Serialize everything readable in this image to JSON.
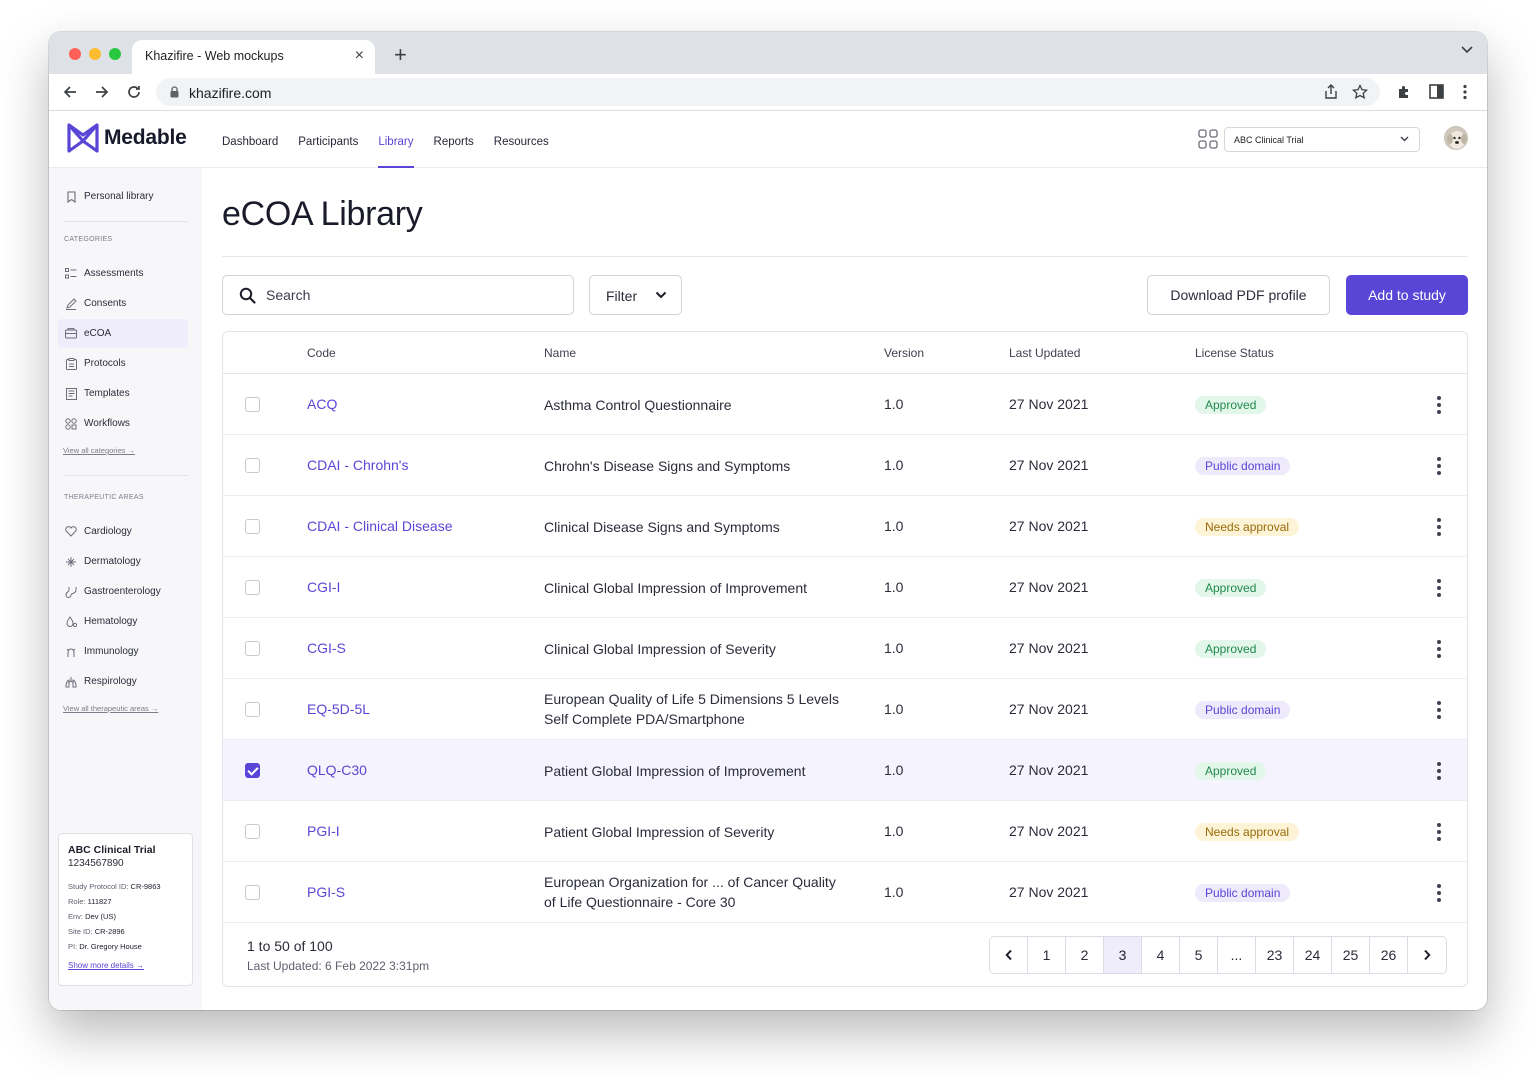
{
  "browser": {
    "tab_title": "Khazifire - Web mockups",
    "url": "khazifire.com"
  },
  "app": {
    "brand": "Medable",
    "nav": [
      {
        "label": "Dashboard",
        "active": false
      },
      {
        "label": "Participants",
        "active": false
      },
      {
        "label": "Library",
        "active": true
      },
      {
        "label": "Reports",
        "active": false
      },
      {
        "label": "Resources",
        "active": false
      }
    ],
    "trial_select": "ABC Clinical Trial",
    "accent_color": "#5a46d6"
  },
  "sidebar": {
    "personal_library": "Personal library",
    "categories_heading": "CATEGORIES",
    "categories": [
      {
        "label": "Assessments",
        "icon": "list-icon",
        "active": false
      },
      {
        "label": "Consents",
        "icon": "pen-icon",
        "active": false
      },
      {
        "label": "eCOA",
        "icon": "device-icon",
        "active": true
      },
      {
        "label": "Protocols",
        "icon": "clipboard-icon",
        "active": false
      },
      {
        "label": "Templates",
        "icon": "template-icon",
        "active": false
      },
      {
        "label": "Workflows",
        "icon": "workflow-icon",
        "active": false
      }
    ],
    "view_all_categories": "View all categories",
    "areas_heading": "THERAPEUTIC AREAS",
    "areas": [
      {
        "label": "Cardiology",
        "icon": "heart-icon"
      },
      {
        "label": "Dermatology",
        "icon": "skin-icon"
      },
      {
        "label": "Gastroenterology",
        "icon": "stomach-icon"
      },
      {
        "label": "Hematology",
        "icon": "blood-icon"
      },
      {
        "label": "Immunology",
        "icon": "immune-icon"
      },
      {
        "label": "Respirology",
        "icon": "lungs-icon"
      }
    ],
    "view_all_areas": "View all therapeutic areas",
    "trial_card": {
      "title": "ABC Clinical Trial",
      "id": "1234567890",
      "rows": [
        {
          "label": "Study Protocol ID:",
          "value": "CR-9863"
        },
        {
          "label": "Role:",
          "value": "111827"
        },
        {
          "label": "Env:",
          "value": "Dev (US)"
        },
        {
          "label": "Site ID:",
          "value": "CR-2896"
        },
        {
          "label": "PI:",
          "value": "Dr. Gregory House"
        }
      ],
      "link": "Show more details"
    }
  },
  "main": {
    "title": "eCOA Library",
    "search_placeholder": "Search",
    "filter_label": "Filter",
    "download_label": "Download PDF profile",
    "add_label": "Add to study",
    "columns": [
      "Code",
      "Name",
      "Version",
      "Last Updated",
      "License Status"
    ],
    "rows": [
      {
        "code": "ACQ",
        "name": "Asthma Control Questionnaire",
        "version": "1.0",
        "updated": "27 Nov 2021",
        "status": "Approved",
        "checked": false
      },
      {
        "code": "CDAI - Chrohn's",
        "name": "Chrohn's Disease Signs and Symptoms",
        "version": "1.0",
        "updated": "27 Nov 2021",
        "status": "Public domain",
        "checked": false
      },
      {
        "code": "CDAI - Clinical Disease",
        "name": "Clinical Disease Signs and Symptoms",
        "version": "1.0",
        "updated": "27 Nov 2021",
        "status": "Needs approval",
        "checked": false
      },
      {
        "code": "CGI-I",
        "name": "Clinical Global Impression of Improvement",
        "version": "1.0",
        "updated": "27 Nov 2021",
        "status": "Approved",
        "checked": false
      },
      {
        "code": "CGI-S",
        "name": "Clinical Global Impression of Severity",
        "version": "1.0",
        "updated": "27 Nov 2021",
        "status": "Approved",
        "checked": false
      },
      {
        "code": "EQ-5D-5L",
        "name": "European Quality of Life 5 Dimensions 5 Levels Self Complete PDA/Smartphone",
        "version": "1.0",
        "updated": "27 Nov 2021",
        "status": "Public domain",
        "checked": false
      },
      {
        "code": "QLQ-C30",
        "name": "Patient Global Impression of Improvement",
        "version": "1.0",
        "updated": "27 Nov 2021",
        "status": "Approved",
        "checked": true
      },
      {
        "code": "PGI-I",
        "name": "Patient Global Impression of Severity",
        "version": "1.0",
        "updated": "27 Nov 2021",
        "status": "Needs approval",
        "checked": false
      },
      {
        "code": "PGI-S",
        "name": "European Organization for ... of Cancer Quality of Life Questionnaire - Core 30",
        "version": "1.0",
        "updated": "27 Nov 2021",
        "status": "Public domain",
        "checked": false
      }
    ],
    "status_colors": {
      "Approved": {
        "bg": "#e3f6ea",
        "fg": "#1f8a4c"
      },
      "Public domain": {
        "bg": "#eeeafb",
        "fg": "#5a46d6"
      },
      "Needs approval": {
        "bg": "#fdf3d6",
        "fg": "#9a6b08"
      }
    },
    "footer": {
      "range": "1 to 50 of 100",
      "last_updated": "Last Updated: 6 Feb 2022 3:31pm"
    },
    "pages": [
      "1",
      "2",
      "3",
      "4",
      "5",
      "...",
      "23",
      "24",
      "25",
      "26"
    ],
    "current_page": "3"
  }
}
